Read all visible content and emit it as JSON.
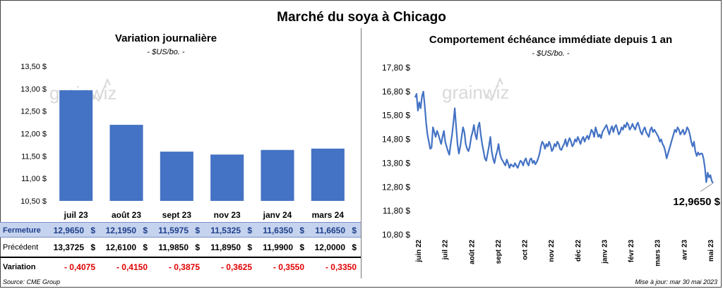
{
  "title": "Marché du soya à Chicago",
  "left": {
    "title": "Variation journalière",
    "unit": "- $US/bo. -",
    "chart_data": {
      "type": "bar",
      "categories": [
        "juil 23",
        "août 23",
        "sept 23",
        "nov 23",
        "janv 24",
        "mars 24"
      ],
      "values": [
        12.965,
        12.195,
        11.5975,
        11.5325,
        11.635,
        11.665
      ],
      "ylim": [
        10.5,
        13.5
      ],
      "yticks": [
        "10,50 $",
        "11,00 $",
        "11,50 $",
        "12,00 $",
        "12,50 $",
        "13,00 $",
        "13,50 $"
      ],
      "bar_color": "#4472c4",
      "grid": false
    },
    "table": {
      "rows": [
        {
          "label": "Fermeture",
          "values": [
            "12,9650",
            "12,1950",
            "11,5975",
            "11,5325",
            "11,6350",
            "11,6650"
          ]
        },
        {
          "label": "Précédent",
          "values": [
            "13,3725",
            "12,6100",
            "11,9850",
            "11,8950",
            "11,9900",
            "12,0000"
          ]
        },
        {
          "label": "Variation",
          "values": [
            "- 0,4075",
            "- 0,4150",
            "- 0,3875",
            "- 0,3625",
            "- 0,3550",
            "- 0,3350"
          ]
        }
      ],
      "currency": "$"
    },
    "source": "Source: CME Group"
  },
  "right": {
    "title": "Comportement  échéance immédiate depuis 1 an",
    "unit": "- $US/bo. -",
    "chart_data": {
      "type": "line",
      "ylim": [
        10.8,
        17.8
      ],
      "yticks": [
        "10,80 $",
        "11,80 $",
        "12,80 $",
        "13,80 $",
        "14,80 $",
        "15,80 $",
        "16,80 $",
        "17,80 $"
      ],
      "xticks": [
        "juin 22",
        "juil 22",
        "août 22",
        "sept 22",
        "oct 22",
        "nov 22",
        "déc 22",
        "janv 23",
        "févr 23",
        "mars 23",
        "avr 23",
        "mai 23"
      ],
      "line_color": "#4472c4",
      "values": [
        16.55,
        16.7,
        16.0,
        16.35,
        16.1,
        16.6,
        16.8,
        16.2,
        15.5,
        15.0,
        14.7,
        14.4,
        14.45,
        15.3,
        15.1,
        14.9,
        15.15,
        15.0,
        14.8,
        14.6,
        14.9,
        15.15,
        14.7,
        14.5,
        14.3,
        14.15,
        14.6,
        15.0,
        15.5,
        16.1,
        15.3,
        14.6,
        14.2,
        14.5,
        14.9,
        15.3,
        15.1,
        14.6,
        14.4,
        14.3,
        14.5,
        14.9,
        15.1,
        15.4,
        15.0,
        14.8,
        15.3,
        15.5,
        15.0,
        14.6,
        14.3,
        14.0,
        13.9,
        14.2,
        14.5,
        14.9,
        14.3,
        14.0,
        13.8,
        14.1,
        14.3,
        14.6,
        14.2,
        14.0,
        13.9,
        13.8,
        13.7,
        13.95,
        13.8,
        13.6,
        13.75,
        13.7,
        13.65,
        13.8,
        13.7,
        13.6,
        13.75,
        13.9,
        13.85,
        13.7,
        13.9,
        14.0,
        13.8,
        13.7,
        13.95,
        14.0,
        13.8,
        13.9,
        13.75,
        13.85,
        14.0,
        14.2,
        14.5,
        14.7,
        14.6,
        14.4,
        14.6,
        14.5,
        14.7,
        14.55,
        14.3,
        14.4,
        14.6,
        14.5,
        14.7,
        14.6,
        14.4,
        14.35,
        14.5,
        14.6,
        14.8,
        14.5,
        14.7,
        14.85,
        14.7,
        14.5,
        14.6,
        14.8,
        14.7,
        14.9,
        14.75,
        14.6,
        14.8,
        14.9,
        14.7,
        14.85,
        14.95,
        14.8,
        15.0,
        15.2,
        15.1,
        14.9,
        15.3,
        15.1,
        14.9,
        15.0,
        14.85,
        15.1,
        15.2,
        15.3,
        15.4,
        15.2,
        15.0,
        15.2,
        15.35,
        15.1,
        15.3,
        15.4,
        15.2,
        15.0,
        15.1,
        15.3,
        15.2,
        15.4,
        15.3,
        15.5,
        15.4,
        15.2,
        15.3,
        15.45,
        15.3,
        15.2,
        15.4,
        15.5,
        15.3,
        15.1,
        15.0,
        15.2,
        15.3,
        15.1,
        15.0,
        14.9,
        15.2,
        15.3,
        15.1,
        15.2,
        15.1,
        15.0,
        14.9,
        14.7,
        14.8,
        14.6,
        14.5,
        14.3,
        14.0,
        14.2,
        14.4,
        14.6,
        14.8,
        15.0,
        15.2,
        15.1,
        15.3,
        15.2,
        15.0,
        15.1,
        15.2,
        15.0,
        15.1,
        15.3,
        15.2,
        15.0,
        14.7,
        14.5,
        14.7,
        14.3,
        14.1,
        14.25,
        14.15,
        14.2,
        14.2,
        14.0,
        13.6,
        13.0,
        13.4,
        13.2,
        13.3,
        13.05,
        12.965
      ],
      "last_label": "12,9650 $"
    },
    "updated": "Mise à jour: mar 30 mai 2023"
  },
  "watermark": "grainwiz"
}
